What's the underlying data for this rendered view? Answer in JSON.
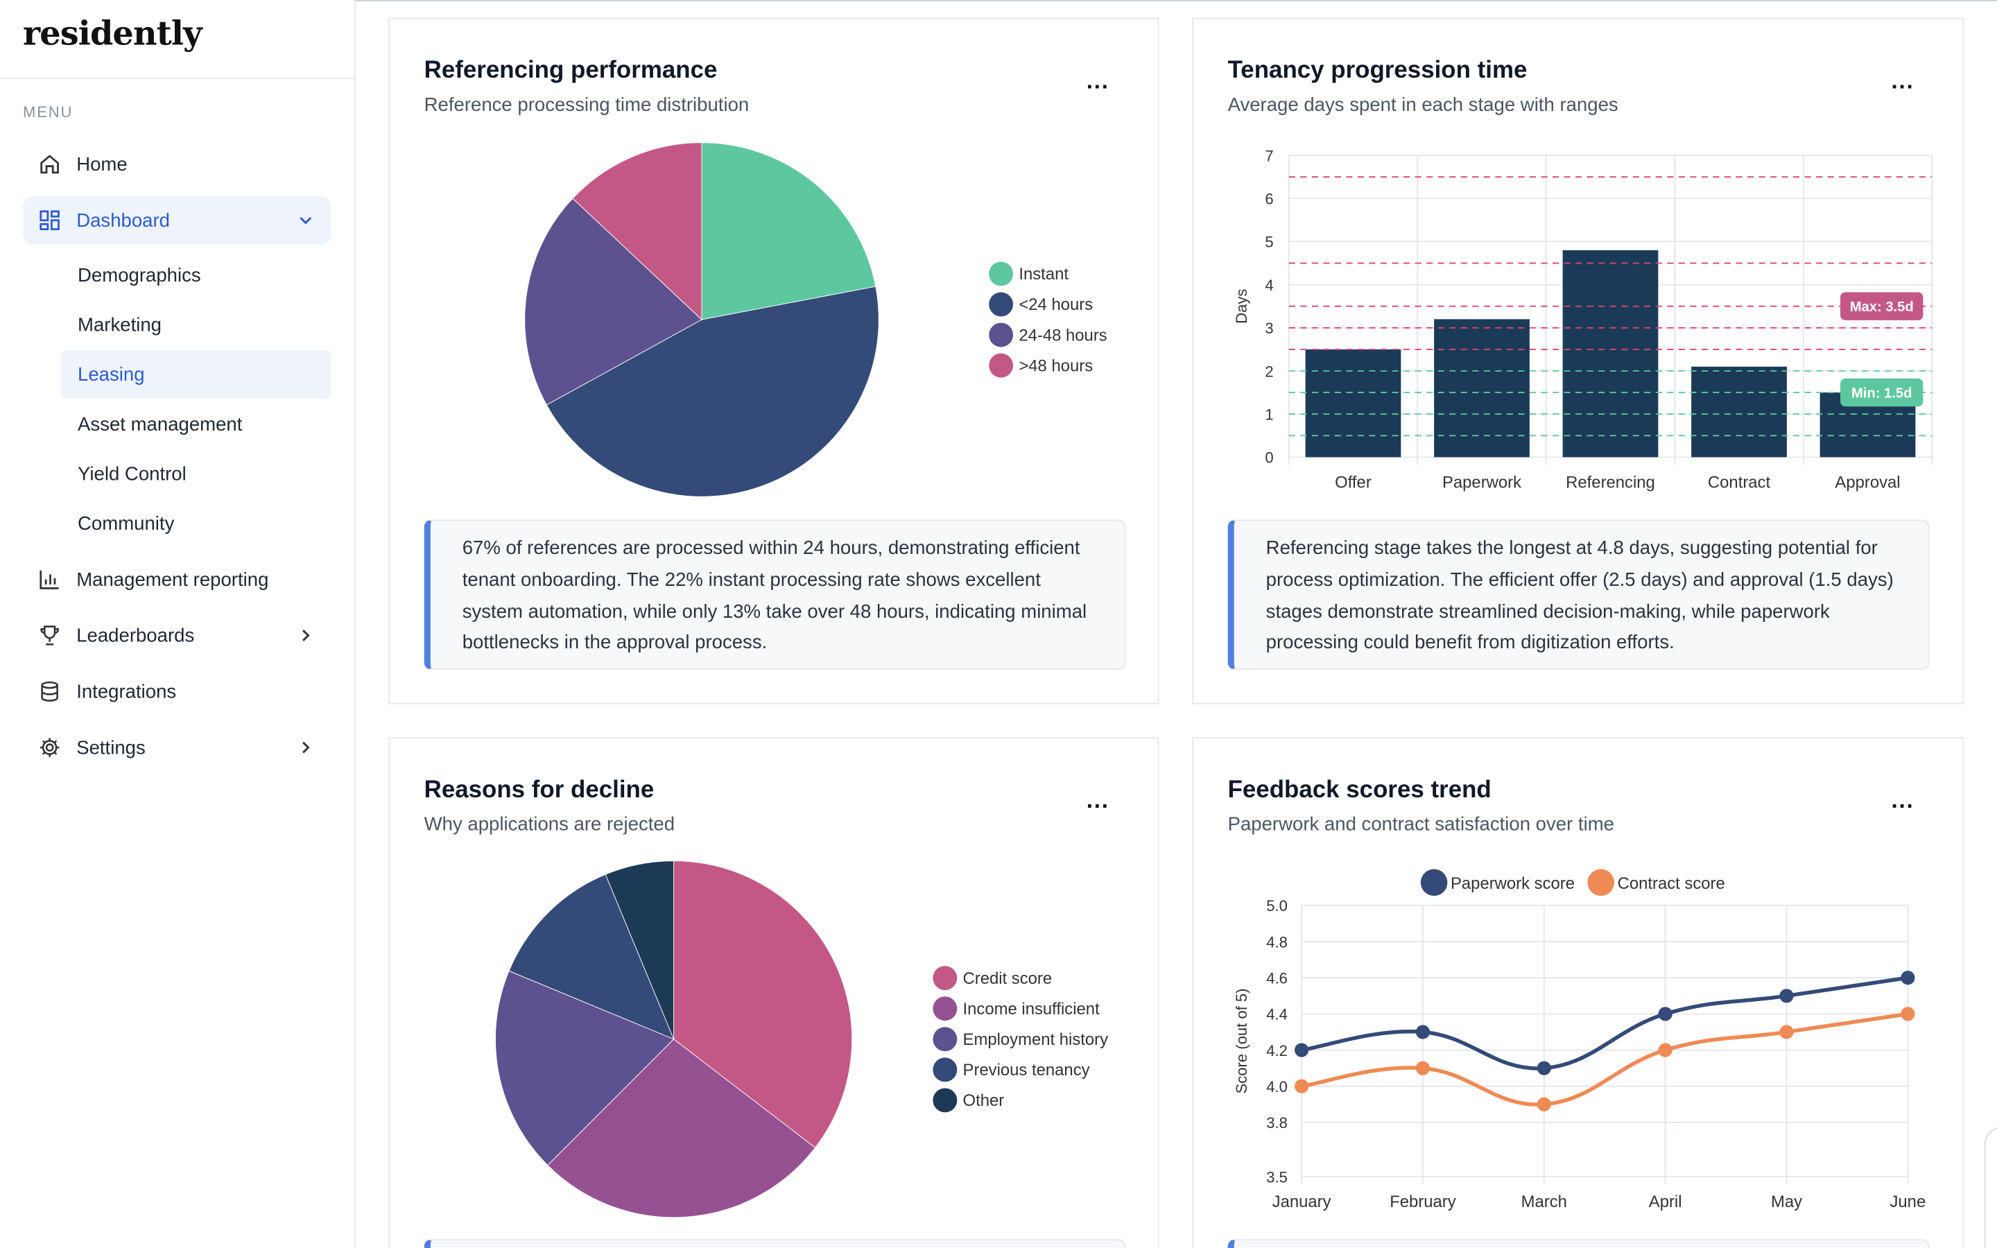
{
  "app": {
    "logo": "residently",
    "menu_label": "MENU"
  },
  "sidebar": {
    "items": [
      {
        "label": "Home",
        "icon": "home-icon"
      },
      {
        "label": "Dashboard",
        "icon": "dashboard-grid-icon",
        "expanded": true
      },
      {
        "label": "Management reporting",
        "icon": "bar-chart-icon"
      },
      {
        "label": "Leaderboards",
        "icon": "trophy-icon"
      },
      {
        "label": "Integrations",
        "icon": "database-icon"
      },
      {
        "label": "Settings",
        "icon": "gear-icon"
      }
    ],
    "dashboard_sub": [
      "Demographics",
      "Marketing",
      "Leasing",
      "Asset management",
      "Yield Control",
      "Community"
    ],
    "active_sub": "Leasing"
  },
  "colors": {
    "accent": "#2d5bd0",
    "bar": "#1b3a57",
    "teal": "#5dc7a0",
    "navy": "#344a78",
    "purple": "#5e5190",
    "pink": "#c45885",
    "magenta": "#955192",
    "dark": "#1c3a56",
    "orange": "#ef8a54"
  },
  "cards": {
    "referencing": {
      "title": "Referencing performance",
      "subtitle": "Reference processing time distribution",
      "insight": "67% of references are processed within 24 hours, demonstrating efficient tenant onboarding. The 22% instant processing rate shows excellent system automation, while only 13% take over 48 hours, indicating minimal bottlenecks in the approval process."
    },
    "tenancy": {
      "title": "Tenancy progression time",
      "subtitle": "Average days spent in each stage with ranges",
      "insight": "Referencing stage takes the longest at 4.8 days, suggesting potential for process optimization. The efficient offer (2.5 days) and approval (1.5 days) stages demonstrate streamlined decision-making, while paperwork processing could benefit from digitization efforts."
    },
    "decline": {
      "title": "Reasons for decline",
      "subtitle": "Why applications are rejected"
    },
    "feedback": {
      "title": "Feedback scores trend",
      "subtitle": "Paperwork and contract satisfaction over time"
    }
  },
  "chart_data": [
    {
      "type": "pie",
      "labels": [
        "Instant",
        "<24 hours",
        "24-48 hours",
        ">48 hours"
      ],
      "values": [
        22,
        45,
        20,
        13
      ],
      "colors": [
        "#5dc7a0",
        "#344a78",
        "#5e5190",
        "#c45885"
      ]
    },
    {
      "type": "bar",
      "categories": [
        "Offer",
        "Paperwork",
        "Referencing",
        "Contract",
        "Approval"
      ],
      "values": [
        2.5,
        3.2,
        4.8,
        2.1,
        1.5
      ],
      "ylabel": "Days",
      "ylim": [
        0,
        7
      ],
      "yticks": [
        0,
        1,
        2,
        3,
        4,
        5,
        6,
        7
      ],
      "max_lines": [
        6.5,
        4.5,
        3.5,
        3.0,
        2.5
      ],
      "min_lines": [
        2.0,
        1.5,
        1.0,
        0.5
      ],
      "annotations": [
        {
          "text": "Max: 3.5d",
          "y": 3.5,
          "color": "#c45885"
        },
        {
          "text": "Min: 1.5d",
          "y": 1.5,
          "color": "#5dc7a0"
        }
      ]
    },
    {
      "type": "pie",
      "labels": [
        "Credit score",
        "Income insufficient",
        "Employment history",
        "Previous tenancy",
        "Other"
      ],
      "values": [
        34,
        26,
        18,
        12,
        6
      ],
      "colors": [
        "#c45885",
        "#955192",
        "#5e5190",
        "#344a78",
        "#1c3a56"
      ]
    },
    {
      "type": "line",
      "categories": [
        "January",
        "February",
        "March",
        "April",
        "May",
        "June"
      ],
      "series": [
        {
          "name": "Paperwork score",
          "values": [
            4.2,
            4.3,
            4.1,
            4.4,
            4.5,
            4.6
          ],
          "color": "#344a78"
        },
        {
          "name": "Contract score",
          "values": [
            4.0,
            4.1,
            3.9,
            4.2,
            4.3,
            4.4
          ],
          "color": "#ef8a54"
        }
      ],
      "ylabel": "Score (out of 5)",
      "ylim": [
        3.5,
        5.0
      ],
      "yticks": [
        3.5,
        3.8,
        4.0,
        4.2,
        4.4,
        4.6,
        4.8,
        5.0
      ]
    }
  ]
}
